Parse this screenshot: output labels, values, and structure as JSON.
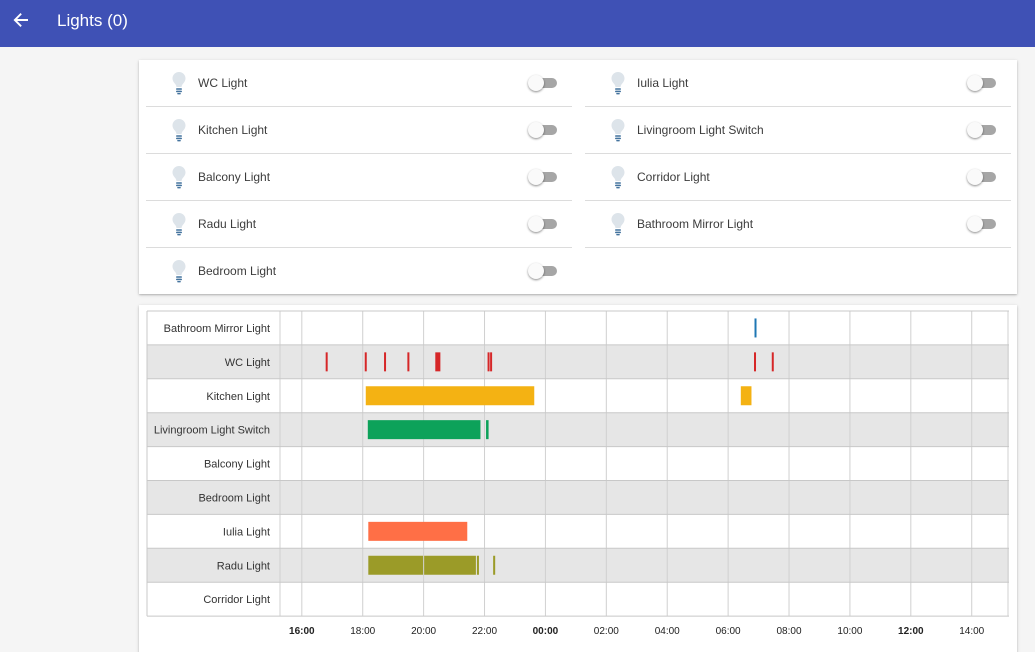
{
  "header": {
    "title": "Lights (0)",
    "back_icon": "arrow-left-icon",
    "background": "#3f51b5"
  },
  "entities": {
    "left": [
      {
        "name": "WC Light",
        "icon": "lightbulb-icon",
        "on": false
      },
      {
        "name": "Kitchen Light",
        "icon": "lightbulb-icon",
        "on": false
      },
      {
        "name": "Balcony Light",
        "icon": "lightbulb-icon",
        "on": false
      },
      {
        "name": "Radu Light",
        "icon": "lightbulb-icon",
        "on": false
      },
      {
        "name": "Bedroom Light",
        "icon": "lightbulb-icon",
        "on": false
      }
    ],
    "right": [
      {
        "name": "Iulia Light",
        "icon": "lightbulb-icon",
        "on": false
      },
      {
        "name": "Livingroom Light Switch",
        "icon": "lightbulb-icon",
        "on": false
      },
      {
        "name": "Corridor Light",
        "icon": "lightbulb-icon",
        "on": false
      },
      {
        "name": "Bathroom Mirror Light",
        "icon": "lightbulb-icon",
        "on": false
      }
    ]
  },
  "history": {
    "axis": {
      "ticks": [
        "16:00",
        "18:00",
        "20:00",
        "22:00",
        "00:00",
        "02:00",
        "04:00",
        "06:00",
        "08:00",
        "10:00",
        "12:00",
        "14:00"
      ],
      "bold_ticks": [
        "16:00",
        "00:00",
        "12:00"
      ]
    },
    "rows": [
      {
        "name": "Bathroom Mirror Light",
        "color": "#1f77b4",
        "on": [
          [
            "06:52",
            "06:54"
          ]
        ]
      },
      {
        "name": "WC Light",
        "color": "#d62728",
        "on": [
          [
            "16:47",
            "16:49"
          ],
          [
            "18:04",
            "18:06"
          ],
          [
            "18:42",
            "18:44"
          ],
          [
            "19:28",
            "19:30"
          ],
          [
            "20:23",
            "20:33"
          ],
          [
            "22:06",
            "22:09"
          ],
          [
            "22:11",
            "22:14"
          ],
          [
            "06:51",
            "06:53"
          ],
          [
            "07:26",
            "07:28"
          ]
        ]
      },
      {
        "name": "Kitchen Light",
        "color": "#f4b213",
        "on": [
          [
            "18:06",
            "23:38"
          ],
          [
            "06:25",
            "06:46"
          ]
        ]
      },
      {
        "name": "Livingroom Light Switch",
        "color": "#0da25a",
        "on": [
          [
            "18:10",
            "21:52"
          ],
          [
            "22:03",
            "22:08"
          ]
        ]
      },
      {
        "name": "Balcony Light",
        "color": "#fc6d47",
        "on": []
      },
      {
        "name": "Bedroom Light",
        "color": "#4e4e4e",
        "on": []
      },
      {
        "name": "Iulia Light",
        "color": "#ff6f46",
        "on": [
          [
            "18:11",
            "21:26"
          ]
        ]
      },
      {
        "name": "Radu Light",
        "color": "#9b9b28",
        "on": [
          [
            "18:11",
            "19:59"
          ],
          [
            "20:01",
            "21:43"
          ],
          [
            "21:45",
            "21:49"
          ],
          [
            "22:17",
            "22:21"
          ]
        ]
      },
      {
        "name": "Corridor Light",
        "color": "#38a8a6",
        "on": []
      }
    ]
  }
}
